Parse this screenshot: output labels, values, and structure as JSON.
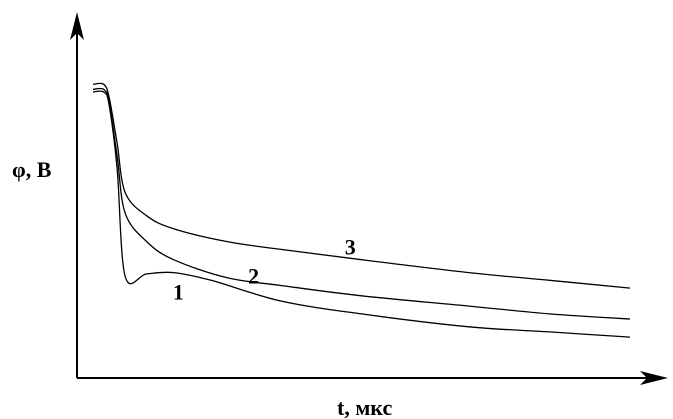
{
  "chart_data": {
    "type": "line",
    "title": "",
    "xlabel": "t, мкс",
    "ylabel": "φ, В",
    "grid": false,
    "legend": "none",
    "series": [
      {
        "name": "1",
        "x": [
          0,
          0.02,
          0.03,
          0.045,
          0.06,
          0.1,
          0.15,
          0.22,
          0.35,
          0.5,
          0.7,
          0.85,
          1.0
        ],
        "y": [
          1.0,
          1.0,
          0.95,
          0.7,
          0.285,
          0.295,
          0.3,
          0.27,
          0.19,
          0.14,
          0.09,
          0.07,
          0.05
        ]
      },
      {
        "name": "2",
        "x": [
          0,
          0.02,
          0.03,
          0.045,
          0.06,
          0.1,
          0.15,
          0.25,
          0.35,
          0.5,
          0.7,
          0.85,
          1.0
        ],
        "y": [
          1.01,
          1.01,
          0.96,
          0.75,
          0.53,
          0.42,
          0.35,
          0.28,
          0.25,
          0.21,
          0.17,
          0.14,
          0.12
        ]
      },
      {
        "name": "3",
        "x": [
          0,
          0.02,
          0.03,
          0.045,
          0.06,
          0.1,
          0.15,
          0.25,
          0.35,
          0.5,
          0.7,
          0.85,
          1.0
        ],
        "y": [
          1.03,
          1.03,
          0.98,
          0.8,
          0.61,
          0.52,
          0.47,
          0.42,
          0.39,
          0.35,
          0.3,
          0.27,
          0.24
        ]
      }
    ]
  }
}
